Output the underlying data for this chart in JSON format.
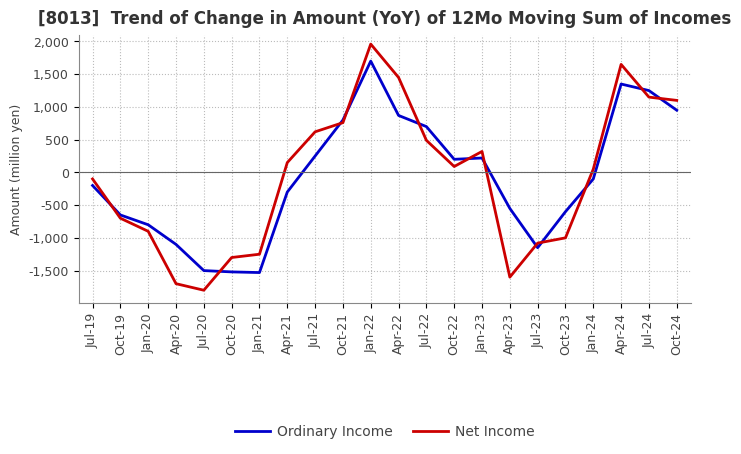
{
  "title": "[8013]  Trend of Change in Amount (YoY) of 12Mo Moving Sum of Incomes",
  "ylabel": "Amount (million yen)",
  "background_color": "#ffffff",
  "plot_bg_color": "#ffffff",
  "grid_color": "#bbbbbb",
  "x_labels": [
    "Jul-19",
    "Oct-19",
    "Jan-20",
    "Apr-20",
    "Jul-20",
    "Oct-20",
    "Jan-21",
    "Apr-21",
    "Jul-21",
    "Oct-21",
    "Jan-22",
    "Apr-22",
    "Jul-22",
    "Oct-22",
    "Jan-23",
    "Apr-23",
    "Jul-23",
    "Oct-23",
    "Jan-24",
    "Apr-24",
    "Jul-24",
    "Oct-24"
  ],
  "ordinary_income": [
    -200,
    -650,
    -800,
    -1100,
    -1500,
    -1520,
    -1530,
    -300,
    250,
    800,
    1700,
    870,
    700,
    200,
    220,
    -550,
    -1150,
    -600,
    -100,
    1350,
    1250,
    950
  ],
  "net_income": [
    -100,
    -700,
    -900,
    -1700,
    -1800,
    -1300,
    -1250,
    150,
    620,
    760,
    1960,
    1450,
    490,
    90,
    320,
    -1600,
    -1080,
    -1000,
    50,
    1650,
    1150,
    1100
  ],
  "ordinary_color": "#0000cc",
  "net_color": "#cc0000",
  "ylim": [
    -2000,
    2100
  ],
  "yticks": [
    -1500,
    -1000,
    -500,
    0,
    500,
    1000,
    1500,
    2000
  ],
  "title_fontsize": 12,
  "axis_fontsize": 9,
  "tick_fontsize": 9,
  "legend_fontsize": 10
}
